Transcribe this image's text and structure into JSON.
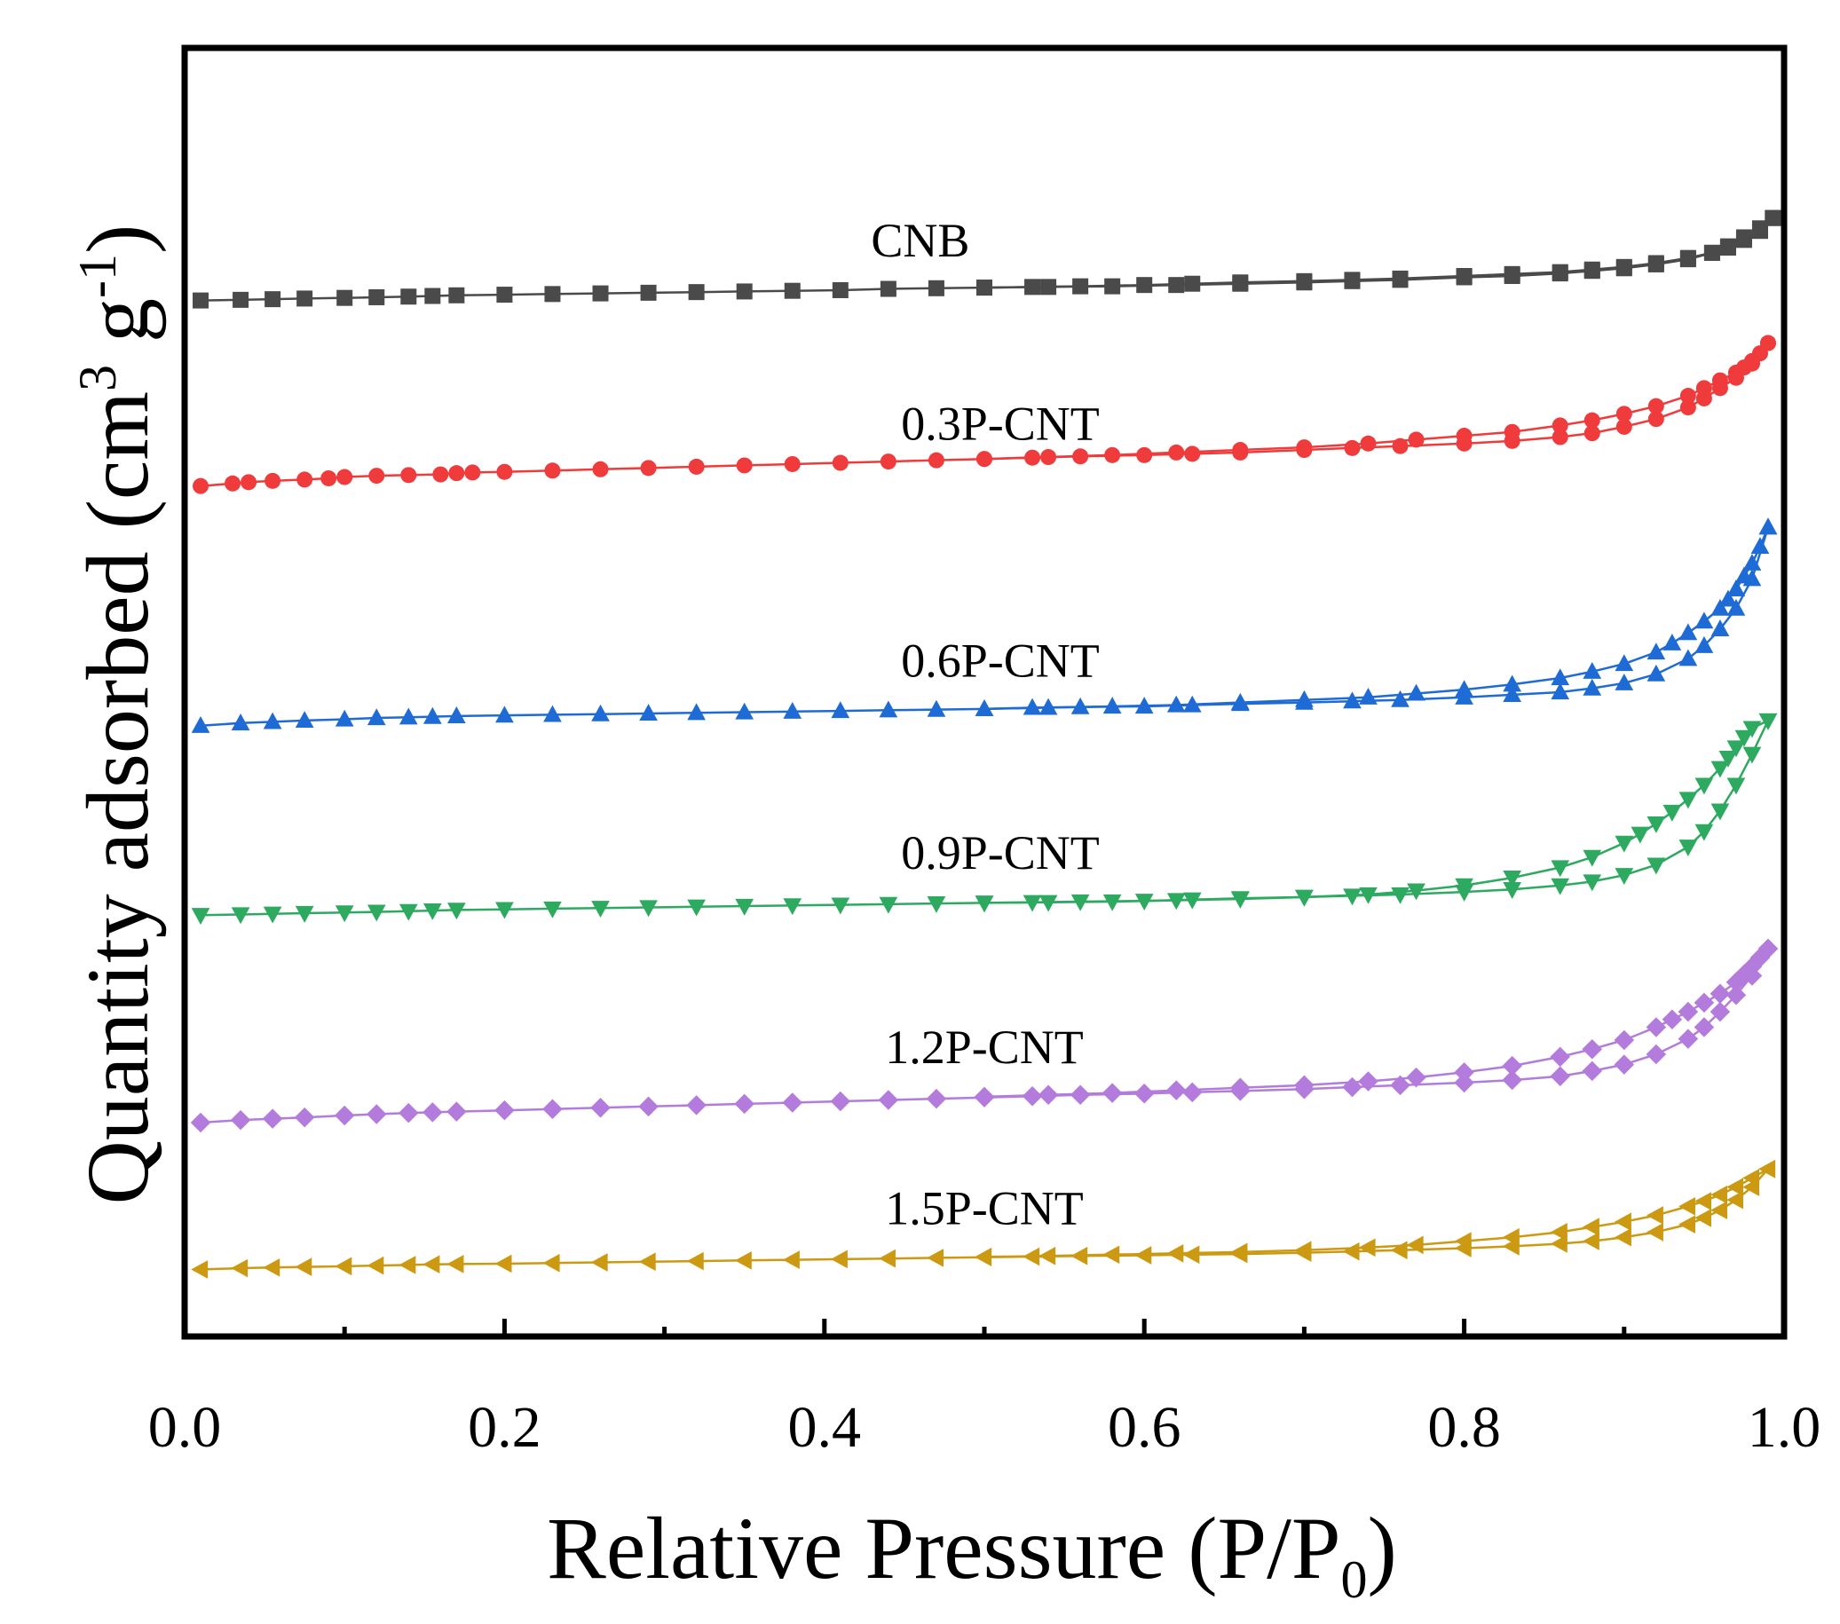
{
  "chart_data": {
    "type": "line",
    "title": "",
    "xlabel": {
      "text": "Relative Pressure (P/P",
      "subscript": "0",
      "suffix": ")"
    },
    "ylabel": {
      "text": "Quantity adsorbed (cm",
      "sup1": "3",
      "middle": " g",
      "sup2": "-1",
      "suffix": ")"
    },
    "xlim": [
      0.0,
      1.0
    ],
    "ylim": [
      0,
      100
    ],
    "x_ticks": [
      "0.0",
      "0.2",
      "0.4",
      "0.6",
      "0.8",
      "1.0"
    ],
    "y_ticks": [],
    "grid": false,
    "legend": "inline labels above each curve",
    "series": [
      {
        "name": "CNB",
        "color": "#4a4a4a",
        "marker": "square",
        "adsorption": {
          "x": [
            0.01,
            0.035,
            0.055,
            0.075,
            0.1,
            0.12,
            0.14,
            0.155,
            0.17,
            0.2,
            0.23,
            0.26,
            0.29,
            0.32,
            0.35,
            0.38,
            0.41,
            0.44,
            0.47,
            0.5,
            0.53,
            0.56,
            0.6,
            0.63,
            0.66,
            0.7,
            0.73,
            0.76,
            0.8,
            0.83,
            0.86,
            0.88,
            0.9,
            0.92,
            0.94,
            0.955,
            0.965,
            0.975,
            0.985,
            0.993
          ],
          "y": [
            80.4,
            80.45,
            80.5,
            80.55,
            80.6,
            80.65,
            80.7,
            80.75,
            80.8,
            80.85,
            80.9,
            80.95,
            81.0,
            81.05,
            81.1,
            81.15,
            81.2,
            81.3,
            81.35,
            81.4,
            81.45,
            81.5,
            81.6,
            81.7,
            81.8,
            81.9,
            82.0,
            82.1,
            82.3,
            82.45,
            82.6,
            82.8,
            83.0,
            83.3,
            83.7,
            84.1,
            84.5,
            85.1,
            85.8,
            86.8
          ]
        },
        "desorption": {
          "x": [
            0.993,
            0.985,
            0.975,
            0.965,
            0.955,
            0.94,
            0.92,
            0.9,
            0.88,
            0.86,
            0.83,
            0.8,
            0.76,
            0.73,
            0.7,
            0.66,
            0.62,
            0.58,
            0.54,
            0.5
          ],
          "y": [
            86.8,
            86.0,
            85.3,
            84.6,
            84.1,
            83.6,
            83.2,
            82.9,
            82.7,
            82.5,
            82.3,
            82.2,
            82.0,
            81.9,
            81.8,
            81.7,
            81.6,
            81.5,
            81.45,
            81.4
          ]
        }
      },
      {
        "name": "0.3P-CNT",
        "color": "#ef3b3b",
        "marker": "circle",
        "adsorption": {
          "x": [
            0.01,
            0.03,
            0.04,
            0.055,
            0.075,
            0.09,
            0.1,
            0.12,
            0.14,
            0.16,
            0.17,
            0.18,
            0.2,
            0.23,
            0.26,
            0.29,
            0.32,
            0.35,
            0.38,
            0.41,
            0.44,
            0.47,
            0.5,
            0.53,
            0.56,
            0.6,
            0.63,
            0.66,
            0.7,
            0.73,
            0.76,
            0.8,
            0.83,
            0.86,
            0.88,
            0.9,
            0.92,
            0.94,
            0.95,
            0.96,
            0.97,
            0.98,
            0.99
          ],
          "y": [
            66.0,
            66.2,
            66.3,
            66.4,
            66.5,
            66.6,
            66.7,
            66.8,
            66.85,
            66.9,
            67.0,
            67.05,
            67.1,
            67.2,
            67.3,
            67.4,
            67.5,
            67.6,
            67.7,
            67.8,
            67.9,
            68.0,
            68.1,
            68.2,
            68.3,
            68.4,
            68.5,
            68.6,
            68.8,
            68.95,
            69.1,
            69.3,
            69.5,
            69.8,
            70.1,
            70.6,
            71.2,
            72.1,
            72.8,
            73.6,
            74.4,
            75.5,
            77.1
          ]
        },
        "desorption": {
          "x": [
            0.99,
            0.985,
            0.98,
            0.975,
            0.97,
            0.96,
            0.95,
            0.94,
            0.92,
            0.9,
            0.88,
            0.86,
            0.83,
            0.8,
            0.77,
            0.74,
            0.7,
            0.66,
            0.62,
            0.58,
            0.54,
            0.5
          ],
          "y": [
            77.1,
            76.3,
            75.7,
            75.2,
            74.8,
            74.2,
            73.6,
            73.0,
            72.2,
            71.6,
            71.1,
            70.7,
            70.2,
            69.9,
            69.6,
            69.3,
            69.0,
            68.8,
            68.6,
            68.4,
            68.25,
            68.1
          ]
        }
      },
      {
        "name": "0.6P-CNT",
        "color": "#1f6bd6",
        "marker": "triangle-up",
        "adsorption": {
          "x": [
            0.01,
            0.035,
            0.055,
            0.075,
            0.1,
            0.12,
            0.14,
            0.155,
            0.17,
            0.2,
            0.23,
            0.26,
            0.29,
            0.32,
            0.35,
            0.38,
            0.41,
            0.44,
            0.47,
            0.5,
            0.53,
            0.56,
            0.6,
            0.63,
            0.66,
            0.7,
            0.73,
            0.76,
            0.8,
            0.83,
            0.86,
            0.88,
            0.9,
            0.92,
            0.94,
            0.95,
            0.96,
            0.97,
            0.98,
            0.99
          ],
          "y": [
            47.4,
            47.6,
            47.7,
            47.8,
            47.9,
            48.0,
            48.05,
            48.1,
            48.15,
            48.2,
            48.25,
            48.3,
            48.35,
            48.4,
            48.45,
            48.5,
            48.55,
            48.6,
            48.65,
            48.7,
            48.8,
            48.85,
            48.9,
            49.0,
            49.1,
            49.2,
            49.3,
            49.4,
            49.6,
            49.8,
            50.0,
            50.3,
            50.7,
            51.4,
            52.6,
            53.6,
            54.9,
            56.5,
            58.8,
            62.8
          ]
        },
        "desorption": {
          "x": [
            0.99,
            0.985,
            0.98,
            0.975,
            0.97,
            0.965,
            0.96,
            0.95,
            0.94,
            0.93,
            0.92,
            0.9,
            0.88,
            0.86,
            0.83,
            0.8,
            0.77,
            0.74,
            0.7,
            0.66,
            0.62,
            0.58,
            0.54,
            0.5
          ],
          "y": [
            62.8,
            61.3,
            60.0,
            59.0,
            58.0,
            57.2,
            56.5,
            55.5,
            54.6,
            53.8,
            53.1,
            52.2,
            51.6,
            51.1,
            50.6,
            50.2,
            49.9,
            49.6,
            49.4,
            49.2,
            49.0,
            48.9,
            48.8,
            48.7
          ]
        }
      },
      {
        "name": "0.9P-CNT",
        "color": "#2eaa60",
        "marker": "triangle-down",
        "adsorption": {
          "x": [
            0.01,
            0.035,
            0.055,
            0.075,
            0.1,
            0.12,
            0.14,
            0.155,
            0.17,
            0.2,
            0.23,
            0.26,
            0.29,
            0.32,
            0.35,
            0.38,
            0.41,
            0.44,
            0.47,
            0.5,
            0.53,
            0.56,
            0.6,
            0.63,
            0.66,
            0.7,
            0.73,
            0.76,
            0.8,
            0.83,
            0.86,
            0.88,
            0.9,
            0.92,
            0.94,
            0.95,
            0.96,
            0.97,
            0.98,
            0.99
          ],
          "y": [
            32.7,
            32.75,
            32.8,
            32.85,
            32.9,
            32.95,
            33.0,
            33.05,
            33.1,
            33.15,
            33.2,
            33.25,
            33.3,
            33.35,
            33.4,
            33.45,
            33.5,
            33.55,
            33.6,
            33.65,
            33.7,
            33.75,
            33.8,
            33.9,
            34.0,
            34.1,
            34.2,
            34.3,
            34.5,
            34.7,
            35.0,
            35.3,
            35.8,
            36.6,
            38.0,
            39.2,
            40.8,
            42.8,
            45.2,
            47.8
          ]
        },
        "desorption": {
          "x": [
            0.99,
            0.98,
            0.975,
            0.97,
            0.965,
            0.96,
            0.95,
            0.94,
            0.93,
            0.92,
            0.91,
            0.9,
            0.88,
            0.86,
            0.83,
            0.8,
            0.77,
            0.74,
            0.7,
            0.66,
            0.62,
            0.58,
            0.54,
            0.5
          ],
          "y": [
            47.8,
            47.2,
            46.5,
            45.7,
            44.9,
            44.1,
            42.8,
            41.7,
            40.7,
            39.8,
            39.0,
            38.3,
            37.2,
            36.4,
            35.6,
            35.0,
            34.6,
            34.3,
            34.1,
            33.95,
            33.85,
            33.75,
            33.7,
            33.65
          ]
        }
      },
      {
        "name": "1.2P-CNT",
        "color": "#b37bdb",
        "marker": "diamond",
        "adsorption": {
          "x": [
            0.01,
            0.035,
            0.055,
            0.075,
            0.1,
            0.12,
            0.14,
            0.155,
            0.17,
            0.2,
            0.23,
            0.26,
            0.29,
            0.32,
            0.35,
            0.38,
            0.41,
            0.44,
            0.47,
            0.5,
            0.53,
            0.56,
            0.6,
            0.63,
            0.66,
            0.7,
            0.73,
            0.76,
            0.8,
            0.83,
            0.86,
            0.88,
            0.9,
            0.92,
            0.94,
            0.95,
            0.96,
            0.97,
            0.98,
            0.99
          ],
          "y": [
            16.6,
            16.8,
            16.9,
            17.0,
            17.15,
            17.25,
            17.35,
            17.4,
            17.45,
            17.55,
            17.65,
            17.75,
            17.85,
            17.95,
            18.05,
            18.15,
            18.25,
            18.35,
            18.45,
            18.55,
            18.65,
            18.75,
            18.85,
            18.95,
            19.05,
            19.2,
            19.35,
            19.5,
            19.7,
            19.9,
            20.2,
            20.6,
            21.1,
            21.9,
            23.1,
            24.0,
            25.2,
            26.5,
            28.0,
            30.1
          ]
        },
        "desorption": {
          "x": [
            0.99,
            0.985,
            0.98,
            0.975,
            0.97,
            0.96,
            0.95,
            0.94,
            0.93,
            0.92,
            0.9,
            0.88,
            0.86,
            0.83,
            0.8,
            0.77,
            0.74,
            0.7,
            0.66,
            0.62,
            0.58,
            0.54,
            0.5
          ],
          "y": [
            30.1,
            29.4,
            28.7,
            28.1,
            27.5,
            26.6,
            25.9,
            25.2,
            24.6,
            24.0,
            23.0,
            22.3,
            21.7,
            21.0,
            20.5,
            20.1,
            19.8,
            19.5,
            19.3,
            19.1,
            18.9,
            18.75,
            18.6
          ]
        }
      },
      {
        "name": "1.5P-CNT",
        "color": "#cc9a12",
        "marker": "triangle-left",
        "adsorption": {
          "x": [
            0.01,
            0.035,
            0.055,
            0.075,
            0.1,
            0.12,
            0.14,
            0.155,
            0.17,
            0.2,
            0.23,
            0.26,
            0.29,
            0.32,
            0.35,
            0.38,
            0.41,
            0.44,
            0.47,
            0.5,
            0.53,
            0.56,
            0.6,
            0.63,
            0.66,
            0.7,
            0.73,
            0.76,
            0.8,
            0.83,
            0.86,
            0.88,
            0.9,
            0.92,
            0.94,
            0.95,
            0.96,
            0.97,
            0.98,
            0.99
          ],
          "y": [
            5.2,
            5.3,
            5.35,
            5.4,
            5.45,
            5.5,
            5.55,
            5.6,
            5.62,
            5.65,
            5.7,
            5.75,
            5.8,
            5.85,
            5.9,
            5.95,
            6.0,
            6.05,
            6.1,
            6.15,
            6.2,
            6.25,
            6.3,
            6.35,
            6.4,
            6.5,
            6.6,
            6.7,
            6.85,
            7.0,
            7.2,
            7.4,
            7.7,
            8.1,
            8.7,
            9.2,
            9.8,
            10.6,
            11.6,
            13.0
          ]
        },
        "desorption": {
          "x": [
            0.99,
            0.98,
            0.97,
            0.96,
            0.95,
            0.94,
            0.92,
            0.9,
            0.88,
            0.86,
            0.83,
            0.8,
            0.77,
            0.74,
            0.7,
            0.66,
            0.62,
            0.58,
            0.54,
            0.5
          ],
          "y": [
            13.0,
            12.3,
            11.6,
            11.0,
            10.5,
            10.1,
            9.4,
            8.9,
            8.5,
            8.1,
            7.7,
            7.4,
            7.1,
            6.9,
            6.7,
            6.55,
            6.45,
            6.35,
            6.25,
            6.18
          ]
        }
      }
    ],
    "annotations": [
      {
        "text": "CNB",
        "x": 0.46,
        "y": 83.8
      },
      {
        "text": "0.3P-CNT",
        "x": 0.51,
        "y": 69.6
      },
      {
        "text": "0.6P-CNT",
        "x": 0.51,
        "y": 51.2
      },
      {
        "text": "0.9P-CNT",
        "x": 0.51,
        "y": 36.3
      },
      {
        "text": "1.2P-CNT",
        "x": 0.5,
        "y": 21.2
      },
      {
        "text": "1.5P-CNT",
        "x": 0.5,
        "y": 8.7
      }
    ]
  }
}
